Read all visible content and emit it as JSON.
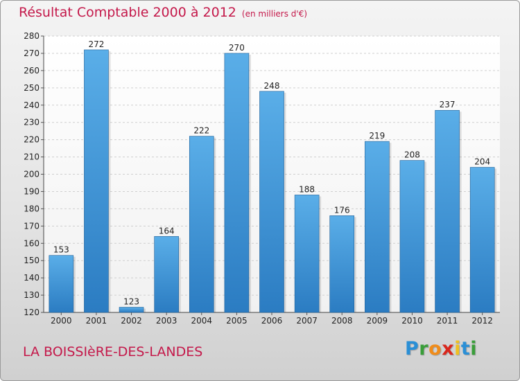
{
  "header": {
    "title": "Résultat Comptable 2000 à 2012",
    "unit": "(en milliers d'€)"
  },
  "footer": {
    "commune": "LA BOISSIèRE-DES-LANDES",
    "logo_letters": [
      "P",
      "r",
      "o",
      "x",
      "i",
      "t",
      "i"
    ],
    "logo_colors": [
      "#2a8fd6",
      "#3a9e3a",
      "#f08c1a",
      "#d9261c",
      "#f0c020",
      "#2a8fd6",
      "#3a9e3a"
    ]
  },
  "colors": {
    "bar_light": "#5aaee8",
    "bar_dark": "#2b7cc2",
    "bar_shadow": "#1e5e96",
    "text_accent": "#c4184a"
  },
  "chart_data": {
    "type": "bar",
    "categories": [
      "2000",
      "2001",
      "2002",
      "2003",
      "2004",
      "2005",
      "2006",
      "2007",
      "2008",
      "2009",
      "2010",
      "2011",
      "2012"
    ],
    "values": [
      153,
      272,
      123,
      164,
      222,
      270,
      248,
      188,
      176,
      219,
      208,
      237,
      204
    ],
    "ylim": [
      120,
      280
    ],
    "yticks": [
      120,
      130,
      140,
      150,
      160,
      170,
      180,
      190,
      200,
      210,
      220,
      230,
      240,
      250,
      260,
      270,
      280
    ],
    "grid": true
  }
}
